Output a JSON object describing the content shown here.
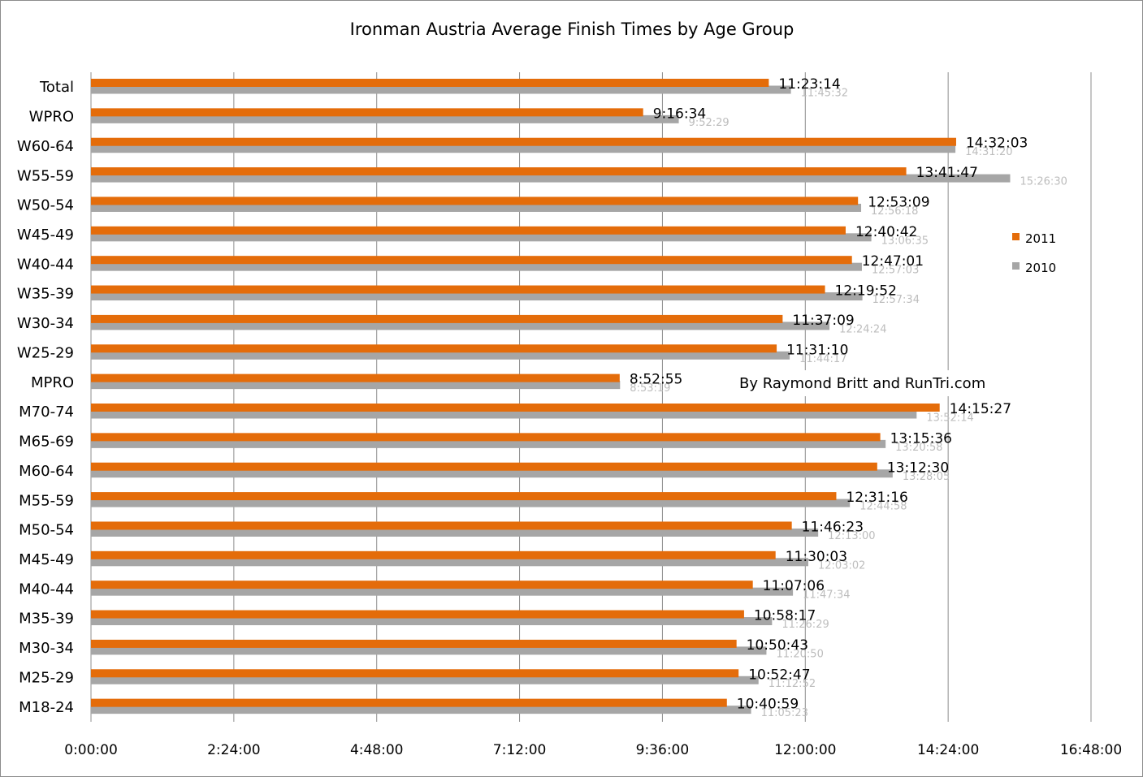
{
  "chart_data": {
    "type": "bar",
    "orientation": "horizontal",
    "title": "Ironman Austria Average Finish Times by Age Group",
    "annotation": "By Raymond Britt and RunTri.com",
    "categories": [
      "Total",
      "WPRO",
      "W60-64",
      "W55-59",
      "W50-54",
      "W45-49",
      "W40-44",
      "W35-39",
      "W30-34",
      "W25-29",
      "MPRO",
      "M70-74",
      "M65-69",
      "M60-64",
      "M55-59",
      "M50-54",
      "M45-49",
      "M40-44",
      "M35-39",
      "M30-34",
      "M25-29",
      "M18-24"
    ],
    "series": [
      {
        "name": "2011",
        "color": "#e46c0a",
        "values": [
          "11:23:14",
          "9:16:34",
          "14:32:03",
          "13:41:47",
          "12:53:09",
          "12:40:42",
          "12:47:01",
          "12:19:52",
          "11:37:09",
          "11:31:10",
          "8:52:55",
          "14:15:27",
          "13:15:36",
          "13:12:30",
          "12:31:16",
          "11:46:23",
          "11:30:03",
          "11:07:06",
          "10:58:17",
          "10:50:43",
          "10:52:47",
          "10:40:59"
        ]
      },
      {
        "name": "2010",
        "color": "#a6a6a6",
        "values": [
          "11:45:32",
          "9:52:29",
          "14:31:20",
          "15:26:30",
          "12:56:18",
          "13:06:35",
          "12:57:03",
          "12:57:34",
          "12:24:24",
          "11:44:17",
          "8:53:19",
          "13:52:14",
          "13:20:58",
          "13:28:05",
          "12:44:58",
          "12:13:00",
          "12:03:02",
          "11:47:34",
          "11:26:29",
          "11:20:50",
          "11:12:52",
          "11:05:23"
        ]
      }
    ],
    "x_ticks": [
      "0:00:00",
      "2:24:00",
      "4:48:00",
      "7:12:00",
      "9:36:00",
      "12:00:00",
      "14:24:00",
      "16:48:00"
    ],
    "xlim": [
      "0:00:00",
      "16:48:00"
    ],
    "grid": true,
    "legend_position": "right"
  }
}
